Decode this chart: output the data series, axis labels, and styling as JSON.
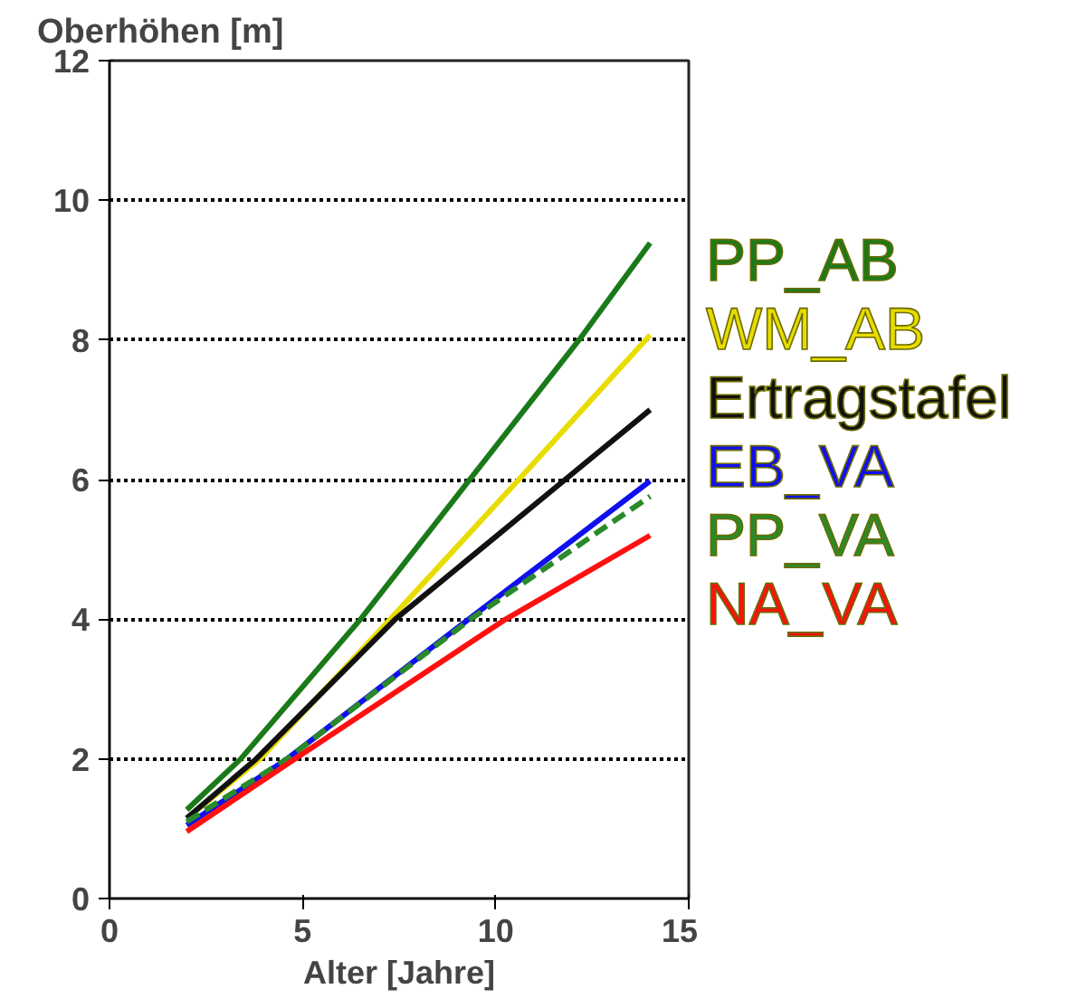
{
  "chart_data": {
    "type": "line",
    "ylabel": "Oberhöhen [m]",
    "xlabel": "Alter [Jahre]",
    "xlim": [
      0,
      15
    ],
    "ylim": [
      0,
      12
    ],
    "xticks": [
      0,
      5,
      10,
      15
    ],
    "yticks": [
      0,
      2,
      4,
      6,
      8,
      10,
      12
    ],
    "grid": "y",
    "legend": "right",
    "marker": "none",
    "series": [
      {
        "name": "PP_AB",
        "color": "#1a7a1a",
        "x": [
          2,
          3.4,
          6.5,
          12.16,
          14
        ],
        "values": [
          1.27,
          2,
          4,
          8,
          9.39
        ]
      },
      {
        "name": "WM_AB",
        "color": "#e8dc00",
        "x": [
          2,
          3.9,
          7.27,
          10.6,
          14
        ],
        "values": [
          1.15,
          2,
          4,
          6,
          8.07
        ]
      },
      {
        "name": "Ertragstafel",
        "color": "#111111",
        "x": [
          2,
          3.8,
          7.4,
          11.8,
          14
        ],
        "values": [
          1.15,
          2,
          4,
          6,
          7.0
        ]
      },
      {
        "name": "EB_VA",
        "color": "#1010ee",
        "x": [
          2,
          4.6,
          9.3,
          14
        ],
        "values": [
          1.05,
          2,
          4,
          5.98
        ]
      },
      {
        "name": "PP_VA",
        "color": "#2a8a2a",
        "line_style": "dashed",
        "x": [
          2,
          4.6,
          9.35,
          14
        ],
        "values": [
          1.1,
          2,
          4,
          5.76
        ]
      },
      {
        "name": "NA_VA",
        "color": "#ff1010",
        "x": [
          2,
          4.8,
          10.26,
          14
        ],
        "values": [
          0.96,
          2,
          4,
          5.2
        ]
      }
    ]
  }
}
